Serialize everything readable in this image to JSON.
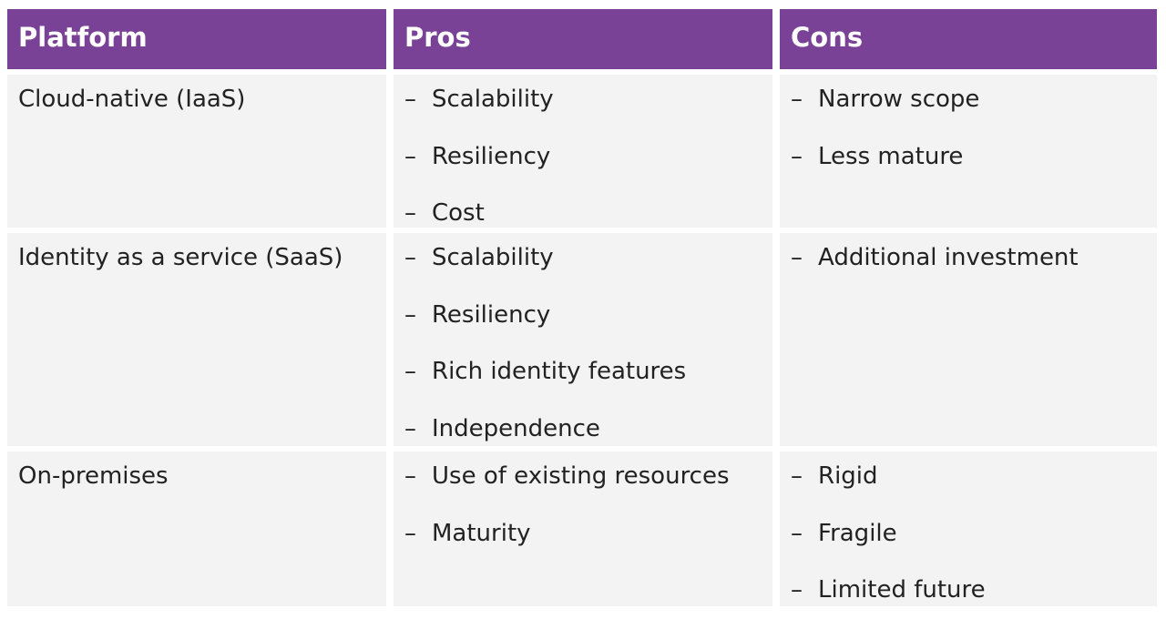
{
  "table": {
    "headers": [
      "Platform",
      "Pros",
      "Cons"
    ],
    "rows": [
      {
        "platform": "Cloud-native (IaaS)",
        "pros": [
          "Scalability",
          "Resiliency",
          "Cost"
        ],
        "cons": [
          "Narrow scope",
          "Less mature"
        ]
      },
      {
        "platform": "Identity as a service (SaaS)",
        "pros": [
          "Scalability",
          "Resiliency",
          "Rich identity features",
          "Independence"
        ],
        "cons": [
          "Additional investment"
        ]
      },
      {
        "platform": "On-premises",
        "pros": [
          "Use of existing resources",
          "Maturity"
        ],
        "cons": [
          "Rigid",
          "Fragile",
          "Limited future"
        ]
      }
    ],
    "bullet": "–"
  },
  "colors": {
    "header_bg": "#7a4296",
    "header_text": "#ffffff",
    "cell_bg": "#f3f3f3",
    "cell_text": "#222222"
  }
}
